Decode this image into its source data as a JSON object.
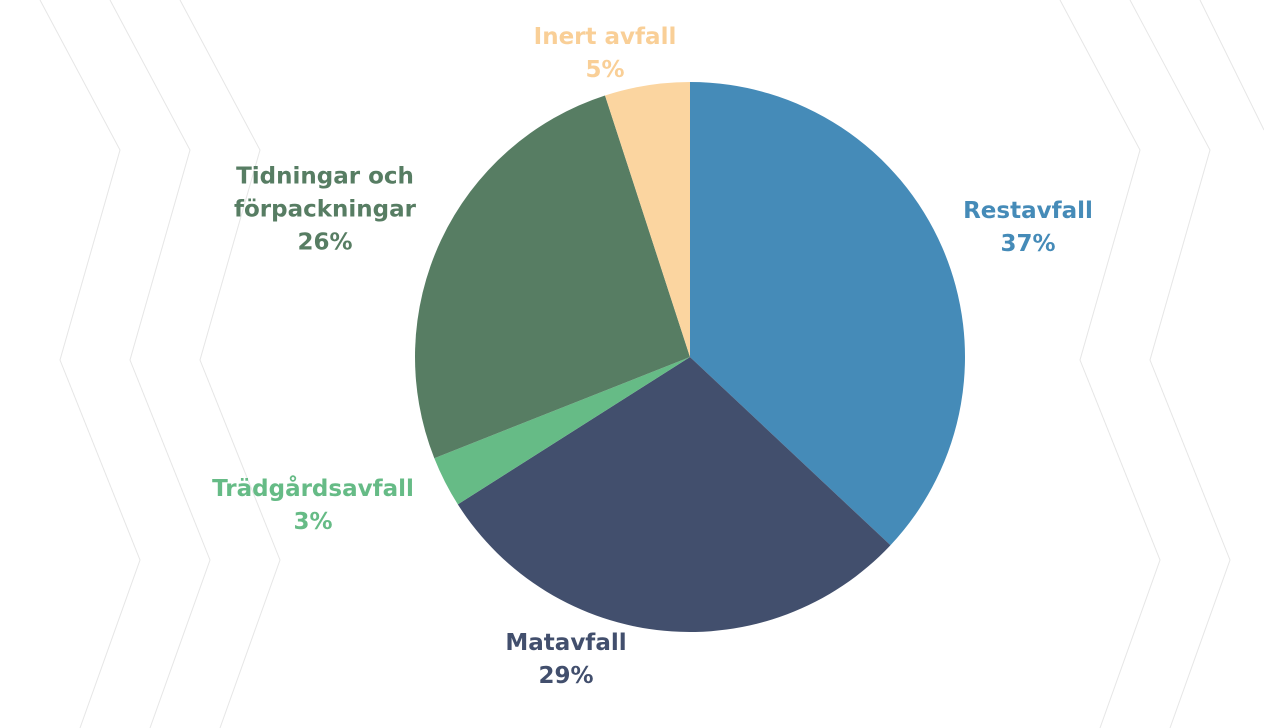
{
  "chart_data": {
    "type": "pie",
    "categories": [
      "Restavfall",
      "Matavfall",
      "Trädgårdsavfall",
      "Tidningar och förpackningar",
      "Inert avfall"
    ],
    "values": [
      37,
      29,
      3,
      26,
      5
    ],
    "value_labels": [
      "37%",
      "29%",
      "3%",
      "26%",
      "5%"
    ],
    "colors": [
      "#458bb8",
      "#424f6d",
      "#66bb86",
      "#577d63",
      "#fbd5a0"
    ]
  }
}
